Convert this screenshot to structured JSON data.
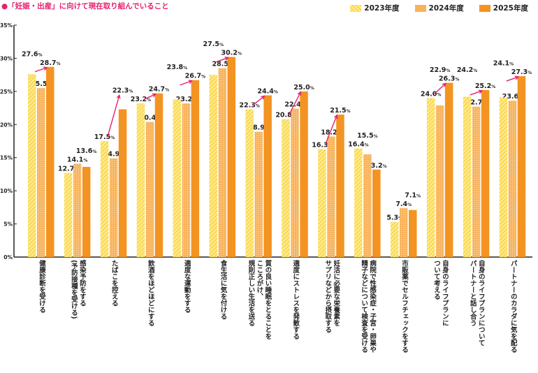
{
  "chart_data": {
    "type": "bar",
    "title": "●「妊娠・出産」に向けて現在取り組んでいること",
    "ylim": [
      0,
      35
    ],
    "yticks": [
      0,
      5,
      10,
      15,
      20,
      25,
      30,
      35
    ],
    "ytick_labels": [
      "0%",
      "5%",
      "10%",
      "15%",
      "20%",
      "25%",
      "30%",
      "35%"
    ],
    "legend_position": "top-right",
    "grid": false,
    "categories": [
      "健康診断を受ける",
      "感染予防をする\n(予防接種を受ける)",
      "たばこを控える",
      "飲酒をほどほどにする",
      "適度な運動をする",
      "食生活に気を付ける",
      "質の良い睡眠をとることを\nこころがけ、\n規則正しい生活を送る",
      "適度にストレスを発散する",
      "妊活に必要な栄養素を\nサプリなどから摂取する",
      "病院で性感染症・子宮・卵巣や\n精子などについて検査を受ける",
      "市販薬でセルフチェックをする",
      "自身のライフプランに\nついて考える",
      "自身のライフプランについて\nパートナーと話し合う",
      "パートナーのカラダに気を配る"
    ],
    "series": [
      {
        "name": "2023年度",
        "color": "#fbd94a",
        "pattern": "diagonal-stripes",
        "values": [
          27.6,
          12.7,
          17.5,
          23.2,
          23.8,
          27.5,
          22.3,
          20.8,
          16.3,
          16.4,
          5.3,
          24.0,
          24.2,
          24.1
        ]
      },
      {
        "name": "2024年度",
        "color": "#f8b25a",
        "pattern": "dots",
        "values": [
          25.5,
          14.1,
          14.9,
          20.4,
          23.2,
          28.5,
          18.9,
          22.4,
          18.2,
          15.5,
          7.4,
          22.9,
          22.7,
          23.6
        ]
      },
      {
        "name": "2025年度",
        "color": "#f39322",
        "pattern": "solid",
        "values": [
          28.7,
          13.6,
          22.3,
          24.7,
          26.7,
          30.2,
          24.4,
          25.0,
          21.5,
          13.2,
          7.1,
          26.3,
          25.2,
          27.3
        ]
      }
    ],
    "increase_arrows": [
      true,
      false,
      true,
      true,
      true,
      true,
      true,
      true,
      true,
      false,
      false,
      true,
      true,
      true
    ],
    "arrow_color": "#e4226f",
    "unit": "%"
  }
}
